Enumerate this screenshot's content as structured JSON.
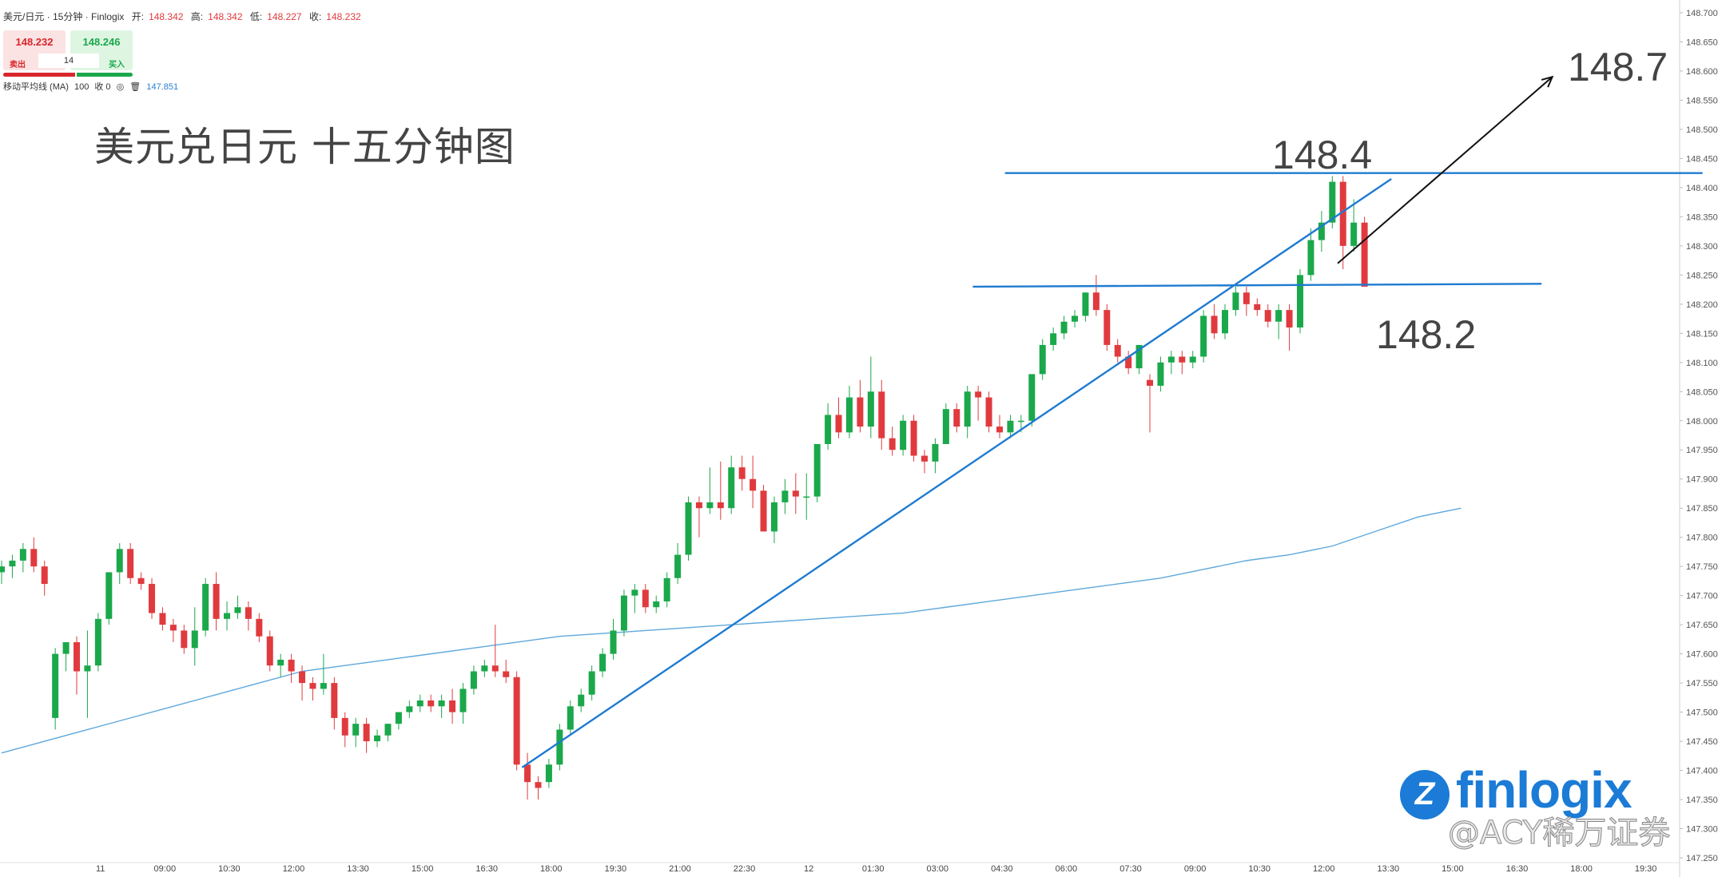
{
  "header": {
    "symbol": "美元/日元 · 15分钟 · Finlogix",
    "open_label": "开:",
    "open": "148.342",
    "high_label": "高:",
    "high": "148.342",
    "low_label": "低:",
    "low": "148.227",
    "close_label": "收:",
    "close": "148.232"
  },
  "trade": {
    "sell_price": "148.232",
    "buy_price": "148.246",
    "sell_label": "卖出",
    "buy_label": "买入",
    "quantity": "14"
  },
  "indicator": {
    "name": "移动平均线 (MA)",
    "period": "100",
    "source": "收 0",
    "value": "147.851"
  },
  "annotations": {
    "title": "美元兑日元 十五分钟图",
    "level_high": "148.4",
    "level_low": "148.2",
    "target": "148.7"
  },
  "brand": {
    "logo_letter": "Z",
    "logo_text": "finlogix",
    "watermark": "@ACY稀万证券"
  },
  "colors": {
    "up": "#1aa84b",
    "down": "#e03a3e",
    "trendline": "#1f7bd0",
    "ma": "#5fa8dc",
    "arrow": "#111111",
    "brand": "#1b7bd6"
  },
  "chart_data": {
    "type": "candlestick",
    "title": "美元兑日元 十五分钟图",
    "ylim": [
      147.25,
      148.7
    ],
    "y_ticks": [
      "148.700",
      "148.650",
      "148.600",
      "148.550",
      "148.500",
      "148.450",
      "148.400",
      "148.350",
      "148.300",
      "148.250",
      "148.200",
      "148.150",
      "148.100",
      "148.050",
      "148.000",
      "147.950",
      "147.900",
      "147.850",
      "147.800",
      "147.750",
      "147.700",
      "147.650",
      "147.600",
      "147.550",
      "147.500",
      "147.450",
      "147.400",
      "147.350",
      "147.300",
      "147.250"
    ],
    "x_ticks": [
      "11",
      "09:00",
      "10:30",
      "12:00",
      "13:30",
      "15:00",
      "16:30",
      "18:00",
      "19:30",
      "21:00",
      "22:30",
      "12",
      "01:30",
      "03:00",
      "04:30",
      "06:00",
      "07:30",
      "09:00",
      "10:30",
      "12:00",
      "13:30",
      "15:00",
      "16:30",
      "18:00",
      "19:30"
    ],
    "candles": [
      [
        147.74,
        147.76,
        147.72,
        147.75
      ],
      [
        147.75,
        147.77,
        147.73,
        147.76
      ],
      [
        147.76,
        147.79,
        147.74,
        147.78
      ],
      [
        147.78,
        147.8,
        147.74,
        147.75
      ],
      [
        147.75,
        147.76,
        147.7,
        147.72
      ],
      [
        147.49,
        147.61,
        147.47,
        147.6
      ],
      [
        147.6,
        147.62,
        147.57,
        147.62
      ],
      [
        147.62,
        147.63,
        147.53,
        147.57
      ],
      [
        147.57,
        147.64,
        147.49,
        147.58
      ],
      [
        147.58,
        147.67,
        147.57,
        147.66
      ],
      [
        147.66,
        147.74,
        147.65,
        147.74
      ],
      [
        147.74,
        147.79,
        147.72,
        147.78
      ],
      [
        147.78,
        147.79,
        147.72,
        147.73
      ],
      [
        147.73,
        147.74,
        147.71,
        147.72
      ],
      [
        147.72,
        147.73,
        147.66,
        147.67
      ],
      [
        147.67,
        147.68,
        147.64,
        147.65
      ],
      [
        147.65,
        147.66,
        147.62,
        147.64
      ],
      [
        147.64,
        147.65,
        147.6,
        147.61
      ],
      [
        147.61,
        147.68,
        147.58,
        147.64
      ],
      [
        147.64,
        147.73,
        147.63,
        147.72
      ],
      [
        147.72,
        147.74,
        147.64,
        147.66
      ],
      [
        147.66,
        147.69,
        147.64,
        147.67
      ],
      [
        147.67,
        147.7,
        147.66,
        147.68
      ],
      [
        147.68,
        147.69,
        147.64,
        147.66
      ],
      [
        147.66,
        147.67,
        147.62,
        147.63
      ],
      [
        147.63,
        147.64,
        147.57,
        147.58
      ],
      [
        147.58,
        147.6,
        147.56,
        147.59
      ],
      [
        147.59,
        147.6,
        147.55,
        147.57
      ],
      [
        147.57,
        147.58,
        147.52,
        147.55
      ],
      [
        147.55,
        147.56,
        147.52,
        147.54
      ],
      [
        147.54,
        147.6,
        147.53,
        147.55
      ],
      [
        147.55,
        147.56,
        147.47,
        147.49
      ],
      [
        147.49,
        147.5,
        147.44,
        147.46
      ],
      [
        147.46,
        147.49,
        147.44,
        147.48
      ],
      [
        147.48,
        147.49,
        147.43,
        147.45
      ],
      [
        147.45,
        147.47,
        147.44,
        147.46
      ],
      [
        147.46,
        147.48,
        147.45,
        147.48
      ],
      [
        147.48,
        147.5,
        147.47,
        147.5
      ],
      [
        147.5,
        147.52,
        147.49,
        147.51
      ],
      [
        147.51,
        147.53,
        147.5,
        147.52
      ],
      [
        147.52,
        147.53,
        147.5,
        147.51
      ],
      [
        147.51,
        147.53,
        147.49,
        147.52
      ],
      [
        147.52,
        147.54,
        147.48,
        147.5
      ],
      [
        147.5,
        147.55,
        147.48,
        147.54
      ],
      [
        147.54,
        147.58,
        147.53,
        147.57
      ],
      [
        147.57,
        147.59,
        147.56,
        147.58
      ],
      [
        147.58,
        147.65,
        147.56,
        147.57
      ],
      [
        147.57,
        147.59,
        147.55,
        147.56
      ],
      [
        147.56,
        147.57,
        147.4,
        147.41
      ],
      [
        147.41,
        147.43,
        147.35,
        147.38
      ],
      [
        147.38,
        147.39,
        147.35,
        147.37
      ],
      [
        147.38,
        147.42,
        147.37,
        147.41
      ],
      [
        147.41,
        147.48,
        147.4,
        147.47
      ],
      [
        147.47,
        147.52,
        147.46,
        147.51
      ],
      [
        147.51,
        147.54,
        147.5,
        147.53
      ],
      [
        147.53,
        147.58,
        147.52,
        147.57
      ],
      [
        147.57,
        147.61,
        147.56,
        147.6
      ],
      [
        147.6,
        147.66,
        147.59,
        147.64
      ],
      [
        147.64,
        147.71,
        147.63,
        147.7
      ],
      [
        147.7,
        147.72,
        147.67,
        147.71
      ],
      [
        147.71,
        147.72,
        147.67,
        147.68
      ],
      [
        147.68,
        147.7,
        147.67,
        147.69
      ],
      [
        147.69,
        147.74,
        147.68,
        147.73
      ],
      [
        147.73,
        147.79,
        147.72,
        147.77
      ],
      [
        147.77,
        147.87,
        147.76,
        147.86
      ],
      [
        147.86,
        147.87,
        147.8,
        147.85
      ],
      [
        147.85,
        147.92,
        147.84,
        147.86
      ],
      [
        147.86,
        147.93,
        147.83,
        147.85
      ],
      [
        147.85,
        147.94,
        147.84,
        147.92
      ],
      [
        147.92,
        147.94,
        147.88,
        147.9
      ],
      [
        147.9,
        147.94,
        147.85,
        147.88
      ],
      [
        147.88,
        147.89,
        147.81,
        147.81
      ],
      [
        147.81,
        147.87,
        147.79,
        147.86
      ],
      [
        147.86,
        147.9,
        147.84,
        147.88
      ],
      [
        147.88,
        147.91,
        147.84,
        147.87
      ],
      [
        147.87,
        147.91,
        147.83,
        147.87
      ],
      [
        147.87,
        147.96,
        147.86,
        147.96
      ],
      [
        147.96,
        148.03,
        147.95,
        148.01
      ],
      [
        148.01,
        148.04,
        147.97,
        147.98
      ],
      [
        147.98,
        148.06,
        147.97,
        148.04
      ],
      [
        148.04,
        148.07,
        147.98,
        147.99
      ],
      [
        147.99,
        148.11,
        147.97,
        148.05
      ],
      [
        148.05,
        148.07,
        147.95,
        147.97
      ],
      [
        147.97,
        147.99,
        147.94,
        147.95
      ],
      [
        147.95,
        148.01,
        147.94,
        148.0
      ],
      [
        148.0,
        148.01,
        147.93,
        147.94
      ],
      [
        147.94,
        147.95,
        147.91,
        147.93
      ],
      [
        147.93,
        147.97,
        147.91,
        147.96
      ],
      [
        147.96,
        148.03,
        147.96,
        148.02
      ],
      [
        148.02,
        148.03,
        147.98,
        147.99
      ],
      [
        147.99,
        148.06,
        147.97,
        148.05
      ],
      [
        148.05,
        148.06,
        148.0,
        148.04
      ],
      [
        148.04,
        148.05,
        147.98,
        147.99
      ],
      [
        147.99,
        148.01,
        147.97,
        147.98
      ],
      [
        147.98,
        148.01,
        147.97,
        148.0
      ],
      [
        148.0,
        148.01,
        147.98,
        148.0
      ],
      [
        148.0,
        148.08,
        147.99,
        148.08
      ],
      [
        148.08,
        148.14,
        148.07,
        148.13
      ],
      [
        148.13,
        148.16,
        148.12,
        148.15
      ],
      [
        148.15,
        148.18,
        148.14,
        148.17
      ],
      [
        148.17,
        148.19,
        148.16,
        148.18
      ],
      [
        148.18,
        148.22,
        148.17,
        148.22
      ],
      [
        148.22,
        148.25,
        148.18,
        148.19
      ],
      [
        148.19,
        148.2,
        148.12,
        148.13
      ],
      [
        148.13,
        148.14,
        148.1,
        148.11
      ],
      [
        148.11,
        148.12,
        148.08,
        148.09
      ],
      [
        148.09,
        148.13,
        148.08,
        148.13
      ],
      [
        148.07,
        148.08,
        147.98,
        148.06
      ],
      [
        148.06,
        148.11,
        148.05,
        148.1
      ],
      [
        148.1,
        148.12,
        148.08,
        148.11
      ],
      [
        148.11,
        148.12,
        148.08,
        148.1
      ],
      [
        148.1,
        148.12,
        148.09,
        148.11
      ],
      [
        148.11,
        148.19,
        148.1,
        148.18
      ],
      [
        148.18,
        148.2,
        148.14,
        148.15
      ],
      [
        148.15,
        148.2,
        148.14,
        148.19
      ],
      [
        148.19,
        148.23,
        148.18,
        148.22
      ],
      [
        148.22,
        148.23,
        148.18,
        148.2
      ],
      [
        148.2,
        148.21,
        148.18,
        148.19
      ],
      [
        148.19,
        148.2,
        148.16,
        148.17
      ],
      [
        148.17,
        148.2,
        148.14,
        148.19
      ],
      [
        148.19,
        148.2,
        148.12,
        148.16
      ],
      [
        148.16,
        148.26,
        148.15,
        148.25
      ],
      [
        148.25,
        148.33,
        148.24,
        148.31
      ],
      [
        148.31,
        148.36,
        148.29,
        148.34
      ],
      [
        148.34,
        148.42,
        148.33,
        148.41
      ],
      [
        148.41,
        148.42,
        148.26,
        148.3
      ],
      [
        148.3,
        148.38,
        148.29,
        148.34
      ],
      [
        148.34,
        148.35,
        148.23,
        148.23
      ]
    ],
    "moving_average": {
      "name": "移动平均线 (MA)",
      "values": [
        147.43,
        147.45,
        147.47,
        147.49,
        147.51,
        147.53,
        147.55,
        147.57,
        147.58,
        147.59,
        147.6,
        147.61,
        147.62,
        147.63,
        147.635,
        147.64,
        147.645,
        147.65,
        147.655,
        147.66,
        147.665,
        147.67,
        147.68,
        147.69,
        147.7,
        147.71,
        147.72,
        147.73,
        147.745,
        147.76,
        147.77,
        147.785,
        147.81,
        147.835,
        147.85
      ]
    },
    "trendlines": [
      {
        "name": "support",
        "from": [
          48.5,
          147.405
        ],
        "to": [
          129.5,
          148.415
        ]
      },
      {
        "name": "level-148.4",
        "from": [
          93.5,
          148.425
        ],
        "to": [
          158.5,
          148.425
        ]
      },
      {
        "name": "level-148.2",
        "from": [
          90.5,
          148.23
        ],
        "to": [
          143.5,
          148.235
        ]
      }
    ],
    "arrow": {
      "from": [
        124.5,
        148.27
      ],
      "to": [
        144.5,
        148.59
      ]
    }
  }
}
